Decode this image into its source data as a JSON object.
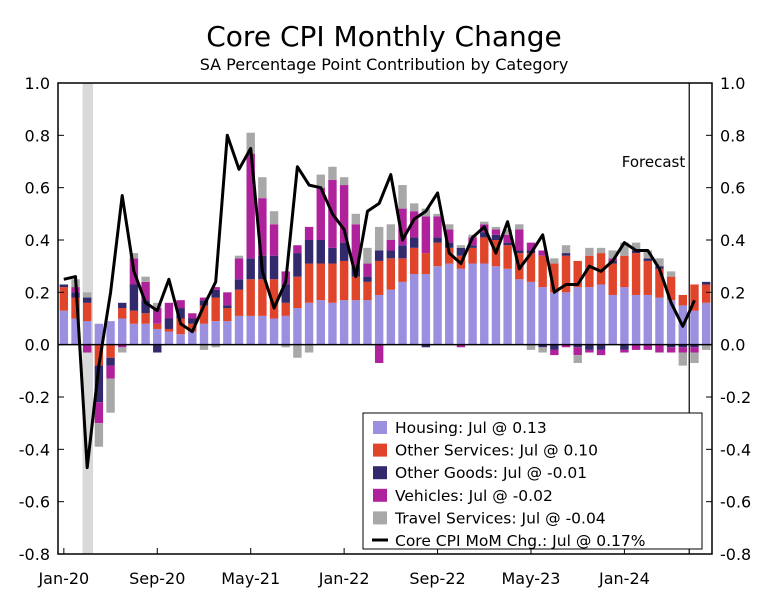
{
  "chart_data": {
    "type": "bar",
    "title": "Core CPI Monthly Change",
    "subtitle": "SA Percentage Point Contribution by Category",
    "ylim": [
      -0.8,
      1.0
    ],
    "yticks": [
      "1.0",
      "0.8",
      "0.6",
      "0.4",
      "0.2",
      "0.0",
      "-0.2",
      "-0.4",
      "-0.6",
      "-0.8"
    ],
    "ytick_values": [
      1.0,
      0.8,
      0.6,
      0.4,
      0.2,
      0.0,
      -0.2,
      -0.4,
      -0.6,
      -0.8
    ],
    "x_tick_labels": [
      "Jan-20",
      "Sep-20",
      "May-21",
      "Jan-22",
      "Sep-22",
      "May-23",
      "Jan-24"
    ],
    "x_tick_month_index": [
      0,
      8,
      16,
      24,
      32,
      40,
      48
    ],
    "categories": [
      "Jan-20",
      "Feb-20",
      "Mar-20",
      "Apr-20",
      "May-20",
      "Jun-20",
      "Jul-20",
      "Aug-20",
      "Sep-20",
      "Oct-20",
      "Nov-20",
      "Dec-20",
      "Jan-21",
      "Feb-21",
      "Mar-21",
      "Apr-21",
      "May-21",
      "Jun-21",
      "Jul-21",
      "Aug-21",
      "Sep-21",
      "Oct-21",
      "Nov-21",
      "Dec-21",
      "Jan-22",
      "Feb-22",
      "Mar-22",
      "Apr-22",
      "May-22",
      "Jun-22",
      "Jul-22",
      "Aug-22",
      "Sep-22",
      "Oct-22",
      "Nov-22",
      "Dec-22",
      "Jan-23",
      "Feb-23",
      "Mar-23",
      "Apr-23",
      "May-23",
      "Jun-23",
      "Jul-23",
      "Aug-23",
      "Sep-23",
      "Oct-23",
      "Nov-23",
      "Dec-23",
      "Jan-24",
      "Feb-24",
      "Mar-24",
      "Apr-24",
      "May-24",
      "Jun-24",
      "Jul-24",
      "Aug-24"
    ],
    "recession_shade": {
      "from_index": 2,
      "to_index": 3
    },
    "forecast_label": "Forecast",
    "forecast_start_index": 54,
    "legend_position": "bottom-right",
    "series": [
      {
        "name": "Housing: Jul @ 0.13",
        "color": "#9b8fe0",
        "values": [
          0.13,
          0.1,
          0.09,
          0.08,
          0.09,
          0.1,
          0.08,
          0.08,
          0.06,
          0.05,
          0.04,
          0.05,
          0.08,
          0.09,
          0.09,
          0.11,
          0.11,
          0.11,
          0.1,
          0.11,
          0.14,
          0.16,
          0.17,
          0.16,
          0.17,
          0.17,
          0.17,
          0.19,
          0.21,
          0.24,
          0.27,
          0.27,
          0.3,
          0.31,
          0.29,
          0.31,
          0.31,
          0.3,
          0.29,
          0.25,
          0.24,
          0.22,
          0.2,
          0.2,
          0.22,
          0.22,
          0.23,
          0.19,
          0.22,
          0.19,
          0.19,
          0.18,
          0.17,
          0.15,
          0.13,
          0.16
        ]
      },
      {
        "name": "Other Services: Jul @ 0.10",
        "color": "#e0442a",
        "values": [
          0.09,
          0.08,
          0.07,
          -0.08,
          -0.05,
          0.04,
          0.05,
          0.04,
          0.02,
          0.01,
          0.06,
          0.03,
          0.07,
          0.09,
          0.05,
          0.1,
          0.14,
          0.14,
          0.15,
          0.05,
          0.12,
          0.15,
          0.14,
          0.15,
          0.15,
          0.09,
          0.07,
          0.13,
          0.12,
          0.09,
          0.1,
          0.08,
          0.09,
          0.06,
          0.05,
          0.06,
          0.1,
          0.1,
          0.09,
          0.1,
          0.11,
          0.12,
          0.11,
          0.14,
          0.1,
          0.12,
          0.12,
          0.12,
          0.12,
          0.16,
          0.13,
          0.11,
          0.09,
          0.04,
          0.1,
          0.07
        ]
      },
      {
        "name": "Other Goods: Jul @ -0.01",
        "color": "#332a6e",
        "values": [
          0.01,
          0.02,
          0.02,
          -0.14,
          -0.03,
          0.02,
          0.1,
          0.05,
          -0.03,
          0.04,
          0.04,
          0.02,
          0.02,
          0.03,
          0.01,
          0.04,
          0.08,
          0.09,
          0.09,
          0.07,
          0.09,
          0.09,
          0.09,
          0.06,
          0.07,
          0.04,
          0.02,
          0.04,
          0.03,
          0.05,
          0.04,
          -0.01,
          0.02,
          0.02,
          0.03,
          0.01,
          0.02,
          0.02,
          0.01,
          0.01,
          0.01,
          -0.01,
          -0.02,
          0.01,
          -0.01,
          -0.02,
          -0.02,
          0.01,
          -0.02,
          0.01,
          0.01,
          0.01,
          -0.01,
          -0.01,
          -0.01,
          0.01
        ]
      },
      {
        "name": "Vehicles: Jul @ -0.02",
        "color": "#b0229b",
        "values": [
          0.0,
          0.02,
          -0.03,
          -0.08,
          -0.05,
          -0.01,
          0.1,
          0.07,
          0.06,
          0.06,
          0.03,
          0.02,
          0.01,
          0.01,
          0.05,
          0.08,
          0.4,
          0.22,
          0.12,
          0.05,
          0.03,
          0.05,
          0.2,
          0.26,
          0.22,
          0.16,
          0.05,
          -0.07,
          0.04,
          0.14,
          0.1,
          0.14,
          0.08,
          0.05,
          -0.01,
          0.03,
          0.03,
          0.02,
          0.03,
          0.08,
          0.03,
          0.02,
          -0.02,
          -0.01,
          -0.03,
          -0.01,
          -0.02,
          0.01,
          -0.01,
          -0.02,
          -0.02,
          -0.03,
          -0.02,
          -0.02,
          -0.02,
          0.0
        ]
      },
      {
        "name": "Travel Services: Jul @ -0.04",
        "color": "#a8a8a8",
        "values": [
          0.0,
          0.03,
          0.02,
          -0.09,
          -0.13,
          -0.02,
          0.02,
          0.02,
          0.02,
          0.0,
          0.0,
          0.0,
          -0.02,
          -0.01,
          0.0,
          0.01,
          0.08,
          0.08,
          0.05,
          -0.01,
          -0.05,
          -0.03,
          0.05,
          0.05,
          0.03,
          0.04,
          0.06,
          0.09,
          0.06,
          0.09,
          0.03,
          0.03,
          0.01,
          0.02,
          0.01,
          0.01,
          0.01,
          0.01,
          0.02,
          0.02,
          -0.02,
          -0.02,
          0.02,
          0.03,
          -0.03,
          0.03,
          0.02,
          0.03,
          0.05,
          0.03,
          0.03,
          0.03,
          0.02,
          -0.05,
          -0.04,
          -0.02
        ]
      }
    ],
    "line": {
      "name": "Core CPI MoM Chg.: Jul @ 0.17%",
      "color": "#000000",
      "values": [
        0.25,
        0.26,
        -0.47,
        -0.08,
        0.2,
        0.57,
        0.28,
        0.16,
        0.13,
        0.25,
        0.08,
        0.05,
        0.15,
        0.24,
        0.8,
        0.67,
        0.75,
        0.28,
        0.14,
        0.24,
        0.68,
        0.61,
        0.6,
        0.5,
        0.44,
        0.26,
        0.51,
        0.54,
        0.65,
        0.4,
        0.48,
        0.51,
        0.58,
        0.35,
        0.31,
        0.41,
        0.45,
        0.35,
        0.47,
        0.29,
        0.35,
        0.42,
        0.2,
        0.23,
        0.23,
        0.3,
        0.28,
        0.32,
        0.39,
        0.36,
        0.36,
        0.29,
        0.16,
        0.07,
        0.17
      ]
    }
  }
}
